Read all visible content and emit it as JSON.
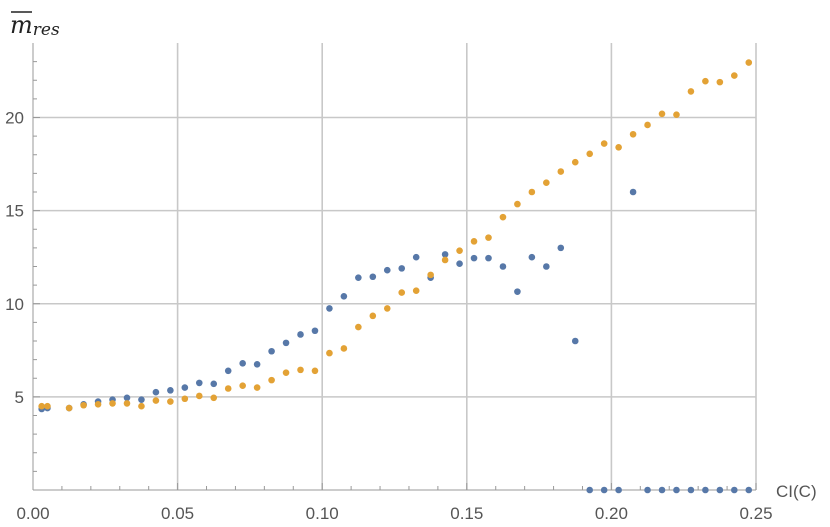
{
  "chart_data": {
    "type": "scatter",
    "ylabel": "m",
    "ylabel_sub": "res",
    "xlabel": "CI(C)",
    "xlim": [
      0,
      0.25
    ],
    "ylim": [
      0,
      24
    ],
    "grid": true,
    "x_ticks": [
      {
        "value": 0,
        "label": "0.00"
      },
      {
        "value": 0.05,
        "label": "0.05"
      },
      {
        "value": 0.1,
        "label": "0.10"
      },
      {
        "value": 0.15,
        "label": "0.15"
      },
      {
        "value": 0.2,
        "label": "0.20"
      },
      {
        "value": 0.25,
        "label": "0.25"
      }
    ],
    "y_ticks": [
      {
        "value": 5,
        "label": "5"
      },
      {
        "value": 10,
        "label": "10"
      },
      {
        "value": 15,
        "label": "15"
      },
      {
        "value": 20,
        "label": "20"
      }
    ],
    "series": [
      {
        "color": "#5778a8",
        "points": [
          [
            0.003,
            4.35
          ],
          [
            0.005,
            4.4
          ],
          [
            0.0125,
            4.4
          ],
          [
            0.0175,
            4.6
          ],
          [
            0.0225,
            4.75
          ],
          [
            0.0275,
            4.85
          ],
          [
            0.0325,
            4.95
          ],
          [
            0.0375,
            4.85
          ],
          [
            0.0425,
            5.25
          ],
          [
            0.0475,
            5.35
          ],
          [
            0.0525,
            5.5
          ],
          [
            0.0575,
            5.75
          ],
          [
            0.0625,
            5.7
          ],
          [
            0.0675,
            6.4
          ],
          [
            0.0725,
            6.8
          ],
          [
            0.0775,
            6.75
          ],
          [
            0.0825,
            7.45
          ],
          [
            0.0875,
            7.9
          ],
          [
            0.0925,
            8.35
          ],
          [
            0.0975,
            8.55
          ],
          [
            0.1025,
            9.75
          ],
          [
            0.1075,
            10.4
          ],
          [
            0.1125,
            11.4
          ],
          [
            0.1175,
            11.45
          ],
          [
            0.1225,
            11.8
          ],
          [
            0.1275,
            11.9
          ],
          [
            0.1325,
            12.5
          ],
          [
            0.1375,
            11.4
          ],
          [
            0.1425,
            12.65
          ],
          [
            0.1475,
            12.15
          ],
          [
            0.1525,
            12.45
          ],
          [
            0.1575,
            12.45
          ],
          [
            0.1625,
            12.0
          ],
          [
            0.1675,
            10.65
          ],
          [
            0.1725,
            12.5
          ],
          [
            0.1775,
            12.0
          ],
          [
            0.1825,
            13.0
          ],
          [
            0.1875,
            8.0
          ],
          [
            0.1925,
            0
          ],
          [
            0.1975,
            0
          ],
          [
            0.2025,
            0
          ],
          [
            0.2075,
            16.0
          ],
          [
            0.2125,
            0
          ],
          [
            0.2175,
            0
          ],
          [
            0.2225,
            0
          ],
          [
            0.2275,
            0
          ],
          [
            0.2325,
            0
          ],
          [
            0.2375,
            0
          ],
          [
            0.2425,
            0
          ],
          [
            0.2475,
            0
          ]
        ]
      },
      {
        "color": "#e3a235",
        "points": [
          [
            0.003,
            4.5
          ],
          [
            0.005,
            4.5
          ],
          [
            0.0125,
            4.4
          ],
          [
            0.0175,
            4.55
          ],
          [
            0.0225,
            4.6
          ],
          [
            0.0275,
            4.65
          ],
          [
            0.0325,
            4.65
          ],
          [
            0.0375,
            4.5
          ],
          [
            0.0425,
            4.8
          ],
          [
            0.0475,
            4.75
          ],
          [
            0.0525,
            4.9
          ],
          [
            0.0575,
            5.05
          ],
          [
            0.0625,
            4.95
          ],
          [
            0.0675,
            5.45
          ],
          [
            0.0725,
            5.6
          ],
          [
            0.0775,
            5.5
          ],
          [
            0.0825,
            5.9
          ],
          [
            0.0875,
            6.3
          ],
          [
            0.0925,
            6.45
          ],
          [
            0.0975,
            6.4
          ],
          [
            0.1025,
            7.35
          ],
          [
            0.1075,
            7.6
          ],
          [
            0.1125,
            8.75
          ],
          [
            0.1175,
            9.35
          ],
          [
            0.1225,
            9.75
          ],
          [
            0.1275,
            10.6
          ],
          [
            0.1325,
            10.7
          ],
          [
            0.1375,
            11.55
          ],
          [
            0.1425,
            12.35
          ],
          [
            0.1475,
            12.85
          ],
          [
            0.1525,
            13.35
          ],
          [
            0.1575,
            13.55
          ],
          [
            0.1625,
            14.65
          ],
          [
            0.1675,
            15.35
          ],
          [
            0.1725,
            16.0
          ],
          [
            0.1775,
            16.5
          ],
          [
            0.1825,
            17.1
          ],
          [
            0.1875,
            17.6
          ],
          [
            0.1925,
            18.05
          ],
          [
            0.1975,
            18.6
          ],
          [
            0.2025,
            18.4
          ],
          [
            0.2075,
            19.1
          ],
          [
            0.2125,
            19.6
          ],
          [
            0.2175,
            20.2
          ],
          [
            0.2225,
            20.15
          ],
          [
            0.2275,
            21.4
          ],
          [
            0.2325,
            21.95
          ],
          [
            0.2375,
            21.9
          ],
          [
            0.2425,
            22.25
          ],
          [
            0.2475,
            22.95
          ]
        ]
      }
    ]
  }
}
